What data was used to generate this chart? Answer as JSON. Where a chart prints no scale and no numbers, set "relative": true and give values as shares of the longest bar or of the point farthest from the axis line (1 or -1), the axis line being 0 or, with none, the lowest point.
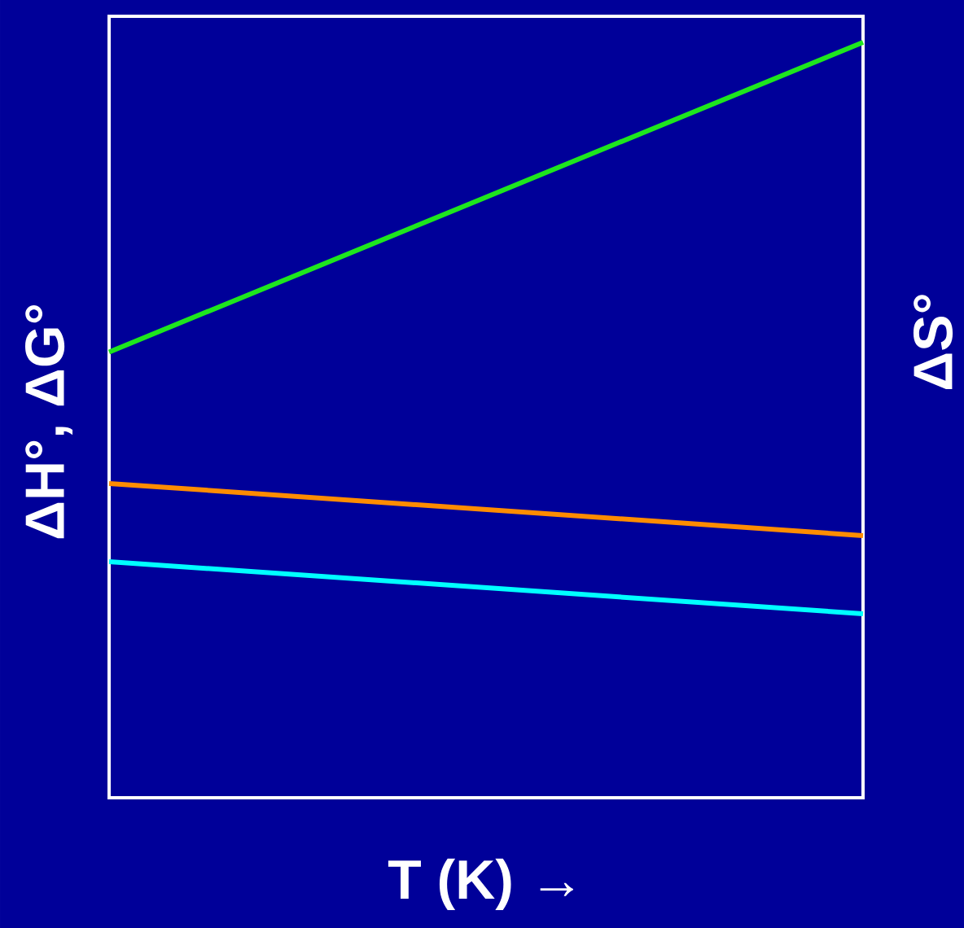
{
  "chart_data": {
    "type": "line",
    "relative": true,
    "xlabel": "T (K) →",
    "ylabel": "ΔH°, ΔG°",
    "y2label": "ΔS°",
    "categories": [
      null,
      null
    ],
    "series": [
      {
        "color": "#1ee61e",
        "values": [
          0.59,
          1.0
        ]
      },
      {
        "color": "#ff8c00",
        "values": [
          0.416,
          0.347
        ]
      },
      {
        "color": "#00ffff",
        "values": [
          0.3125,
          0.2435
        ]
      }
    ]
  }
}
